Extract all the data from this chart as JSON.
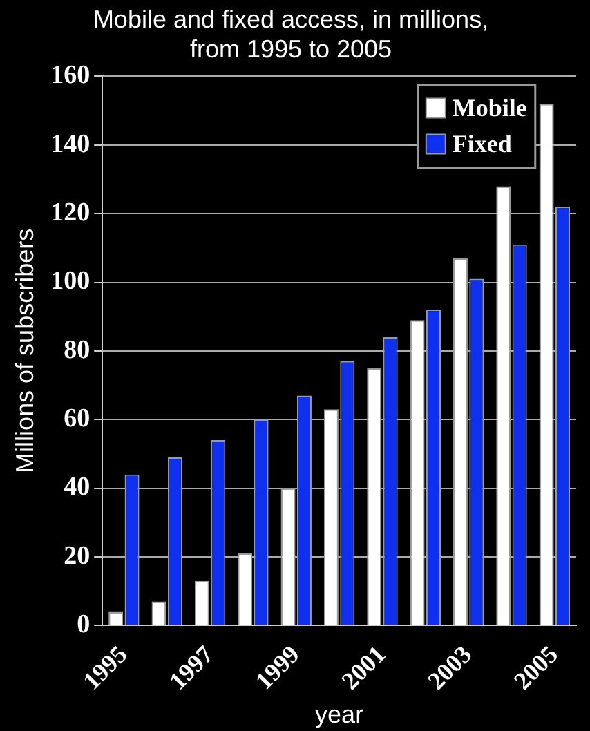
{
  "chart_data": {
    "type": "bar",
    "title": "Mobile and fixed access, in millions, from 1995 to 2005",
    "xlabel": "year",
    "ylabel": "Millions of subscribers",
    "categories": [
      "1995",
      null,
      "1997",
      null,
      "1999",
      null,
      "2001",
      null,
      "2003",
      null,
      "2005"
    ],
    "series": [
      {
        "name": "Mobile",
        "color": "#ffffff",
        "values": [
          4,
          7,
          13,
          21,
          40,
          63,
          75,
          89,
          107,
          128,
          152
        ]
      },
      {
        "name": "Fixed",
        "color": "#1030f0",
        "values": [
          44,
          49,
          54,
          60,
          67,
          77,
          84,
          92,
          101,
          111,
          122
        ]
      }
    ],
    "ylim": [
      0,
      160
    ],
    "yticks": [
      0,
      20,
      40,
      60,
      80,
      100,
      120,
      140,
      160
    ],
    "grid": "y",
    "legend": "top right"
  }
}
